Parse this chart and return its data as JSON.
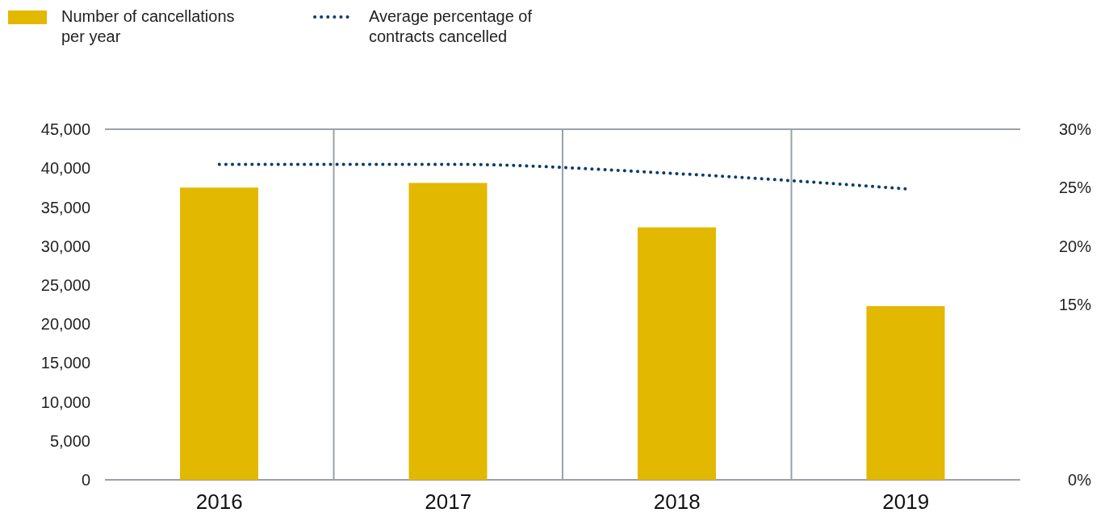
{
  "chart_data": {
    "type": "bar",
    "categories": [
      "2016",
      "2017",
      "2018",
      "2019"
    ],
    "series": [
      {
        "name": "Number of cancellations per year",
        "color": "#e2b800",
        "values": [
          37500,
          38100,
          32400,
          22300
        ]
      },
      {
        "name": "Average percentage of contracts cancelled",
        "type": "line",
        "axis": "y2",
        "color": "#0b3d6b",
        "line_style": "dotted",
        "values": [
          27,
          27,
          26.2,
          24.9
        ]
      }
    ],
    "ylim": [
      0,
      45000
    ],
    "yticks": [
      0,
      {
        "value": 5000,
        "label": "5,000"
      },
      {
        "value": 10000,
        "label": "10,000"
      },
      {
        "value": 15000,
        "label": "15,000"
      },
      {
        "value": 20000,
        "label": "20,000"
      },
      {
        "value": 25000,
        "label": "25,000"
      },
      {
        "value": 30000,
        "label": "30,000"
      },
      {
        "value": 35000,
        "label": "35,000"
      },
      {
        "value": 40000,
        "label": "40,000"
      },
      {
        "value": 45000,
        "label": "45,000"
      }
    ],
    "y2lim": [
      0,
      30
    ],
    "y2ticks": [
      {
        "value": 0,
        "label": "0%"
      },
      {
        "value": 15,
        "label": "15%"
      },
      {
        "value": 20,
        "label": "20%"
      },
      {
        "value": 25,
        "label": "25%"
      },
      {
        "value": 30,
        "label": "30%"
      }
    ],
    "grid": true,
    "legend": "top left",
    "marker": "none"
  }
}
